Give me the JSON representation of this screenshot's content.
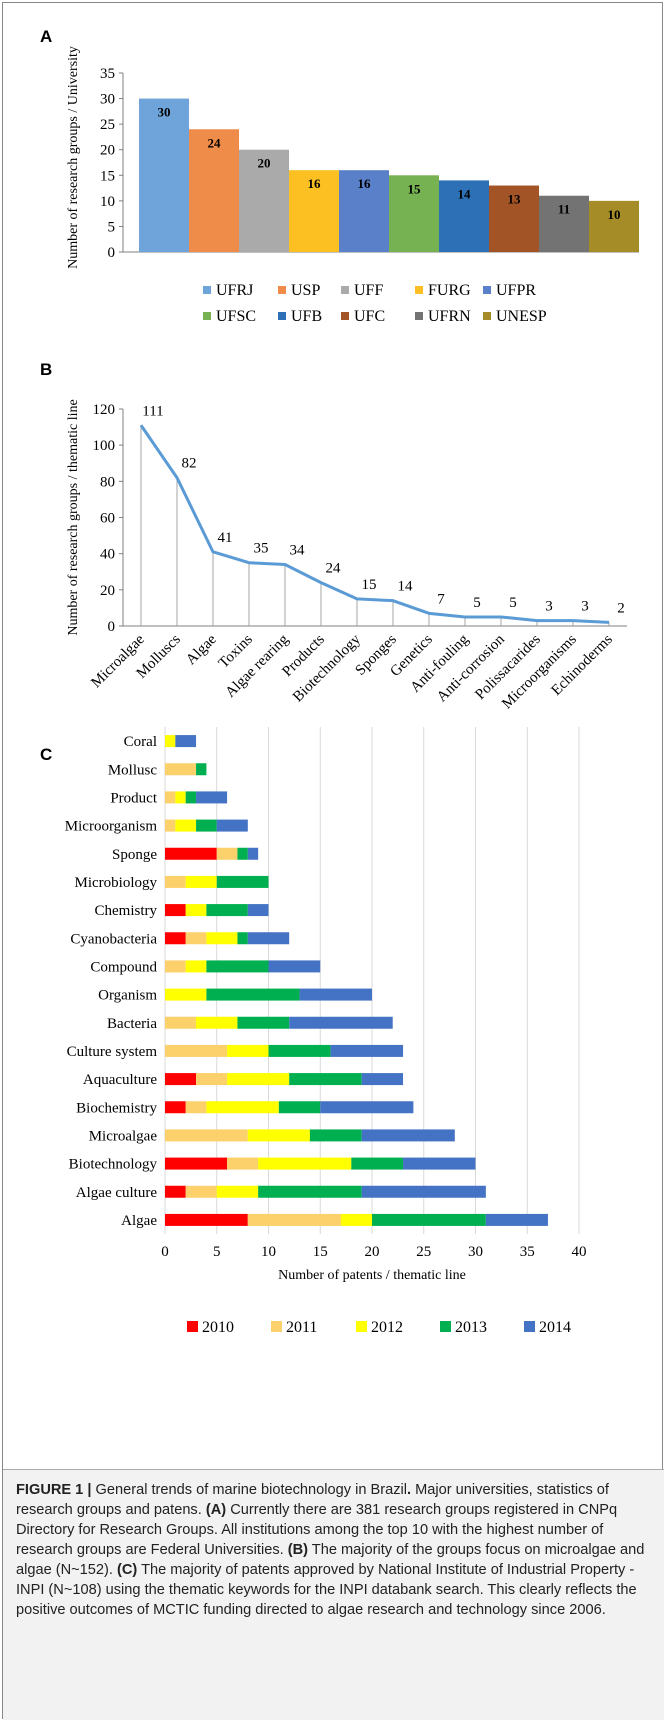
{
  "chart_data": [
    {
      "type": "bar",
      "panel_label": "A",
      "categories": [
        "UFRJ",
        "USP",
        "UFF",
        "FURG",
        "UFPR",
        "UFSC",
        "UFB",
        "UFC",
        "UFRN",
        "UNESP"
      ],
      "values": [
        30,
        24,
        20,
        16,
        16,
        15,
        14,
        13,
        11,
        10
      ],
      "colors": [
        "#6fa4da",
        "#ef8c4a",
        "#aaaaaa",
        "#fcc022",
        "#5b80ca",
        "#76b152",
        "#2d70b6",
        "#a35427",
        "#737373",
        "#a68c26"
      ],
      "ylabel": "Number of research groups / University",
      "ylim": [
        0,
        35
      ],
      "yticks": [
        0,
        5,
        10,
        15,
        20,
        25,
        30,
        35
      ],
      "data_labels": true,
      "legend_position": "bottom",
      "grid": false
    },
    {
      "type": "line",
      "panel_label": "B",
      "categories": [
        "Microalgae",
        "Molluscs",
        "Algae",
        "Toxins",
        "Algae rearing",
        "Products",
        "Biotechnology",
        "Sponges",
        "Genetics",
        "Anti-fouling",
        "Anti-corrosion",
        "Polissacarides",
        "Microorganisms",
        "Echinoderms"
      ],
      "values": [
        111,
        82,
        41,
        35,
        34,
        24,
        15,
        14,
        7,
        5,
        5,
        3,
        3,
        2
      ],
      "color": "#5b9bd5",
      "ylabel": "Number of research groups / thematic line",
      "ylim": [
        0,
        120
      ],
      "yticks": [
        0,
        20,
        40,
        60,
        80,
        100,
        120
      ],
      "drop_lines": true,
      "data_labels": true,
      "grid": false
    },
    {
      "type": "bar",
      "orientation": "horizontal",
      "stacked": true,
      "panel_label": "C",
      "categories": [
        "Coral",
        "Mollusc",
        "Product",
        "Microorganism",
        "Sponge",
        "Microbiology",
        "Chemistry",
        "Cyanobacteria",
        "Compound",
        "Organism",
        "Bacteria",
        "Culture system",
        "Aquaculture",
        "Biochemistry",
        "Microalgae",
        "Biotechnology",
        "Algae culture",
        "Algae"
      ],
      "series": [
        {
          "name": "2010",
          "color": "#ff0000",
          "values": [
            0,
            0,
            0,
            0,
            5,
            0,
            2,
            2,
            0,
            0,
            0,
            0,
            3,
            2,
            0,
            6,
            2,
            8
          ]
        },
        {
          "name": "2011",
          "color": "#fcd06a",
          "values": [
            0,
            3,
            1,
            1,
            2,
            2,
            0,
            2,
            2,
            0,
            3,
            6,
            3,
            2,
            8,
            3,
            3,
            9
          ]
        },
        {
          "name": "2012",
          "color": "#ffff00",
          "values": [
            1,
            0,
            1,
            2,
            0,
            3,
            2,
            3,
            2,
            4,
            4,
            4,
            6,
            7,
            6,
            9,
            4,
            3
          ]
        },
        {
          "name": "2013",
          "color": "#00b050",
          "values": [
            0,
            1,
            1,
            2,
            1,
            5,
            4,
            1,
            6,
            9,
            5,
            6,
            7,
            4,
            5,
            5,
            10,
            11
          ]
        },
        {
          "name": "2014",
          "color": "#4472c4",
          "values": [
            2,
            0,
            3,
            3,
            1,
            0,
            2,
            4,
            5,
            7,
            10,
            7,
            4,
            9,
            9,
            7,
            12,
            6
          ]
        }
      ],
      "xlabel": "Number of patents / thematic line",
      "xlim": [
        0,
        40
      ],
      "xticks": [
        0,
        5,
        10,
        15,
        20,
        25,
        30,
        35,
        40
      ],
      "grid": true,
      "legend_position": "bottom"
    }
  ],
  "caption": {
    "label": "FIGURE 1 |",
    "intro": "General trends of marine biotechnology in Brazil",
    "intro_dot": ".",
    "sentence1": "Major universities, statistics of research groups and patens.",
    "a_label": "(A)",
    "a_text": "Currently there are 381 research groups registered in CNPq Directory for Research Groups. All institutions among the top 10 with the highest number of research groups are Federal Universities.",
    "b_label": "(B)",
    "b_text": "The majority of the groups focus on microalgae and algae (N~152).",
    "c_label": "(C)",
    "c_text": "The majority of patents approved by National Institute of Industrial Property - INPI (N~108) using the thematic keywords for the INPI databank search. This clearly reflects the positive outcomes of MCTIC funding directed to algae research and technology since 2006."
  }
}
